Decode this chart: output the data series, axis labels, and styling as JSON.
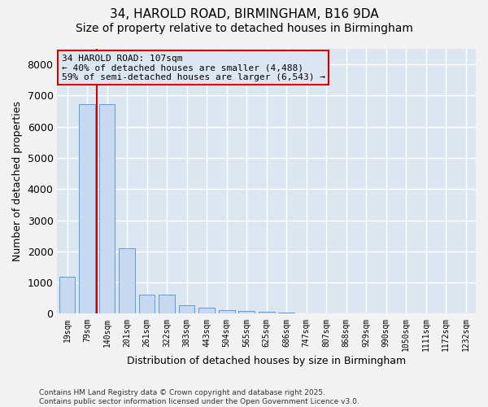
{
  "title_line1": "34, HAROLD ROAD, BIRMINGHAM, B16 9DA",
  "title_line2": "Size of property relative to detached houses in Birmingham",
  "xlabel": "Distribution of detached houses by size in Birmingham",
  "ylabel": "Number of detached properties",
  "categories": [
    "19sqm",
    "79sqm",
    "140sqm",
    "201sqm",
    "261sqm",
    "322sqm",
    "383sqm",
    "443sqm",
    "504sqm",
    "565sqm",
    "625sqm",
    "686sqm",
    "747sqm",
    "807sqm",
    "868sqm",
    "929sqm",
    "990sqm",
    "1050sqm",
    "1111sqm",
    "1172sqm",
    "1232sqm"
  ],
  "values": [
    1180,
    6720,
    6730,
    2100,
    620,
    600,
    270,
    190,
    115,
    90,
    55,
    28,
    14,
    9,
    5,
    3,
    2,
    1,
    1,
    0,
    0
  ],
  "bar_color": "#c6d9f0",
  "bar_edgecolor": "#5b9bd5",
  "vline_color": "#cc0000",
  "vline_x": 1.5,
  "annotation_text": "34 HAROLD ROAD: 107sqm\n← 40% of detached houses are smaller (4,488)\n59% of semi-detached houses are larger (6,543) →",
  "annotation_box_edgecolor": "#cc0000",
  "ylim": [
    0,
    8500
  ],
  "yticks": [
    0,
    1000,
    2000,
    3000,
    4000,
    5000,
    6000,
    7000,
    8000
  ],
  "footer": "Contains HM Land Registry data © Crown copyright and database right 2025.\nContains public sector information licensed under the Open Government Licence v3.0.",
  "plot_bg_color": "#dce6f1",
  "fig_bg_color": "#f2f2f2",
  "grid_color": "#ffffff",
  "title_fontsize": 11,
  "subtitle_fontsize": 10,
  "annotation_fontsize": 8
}
